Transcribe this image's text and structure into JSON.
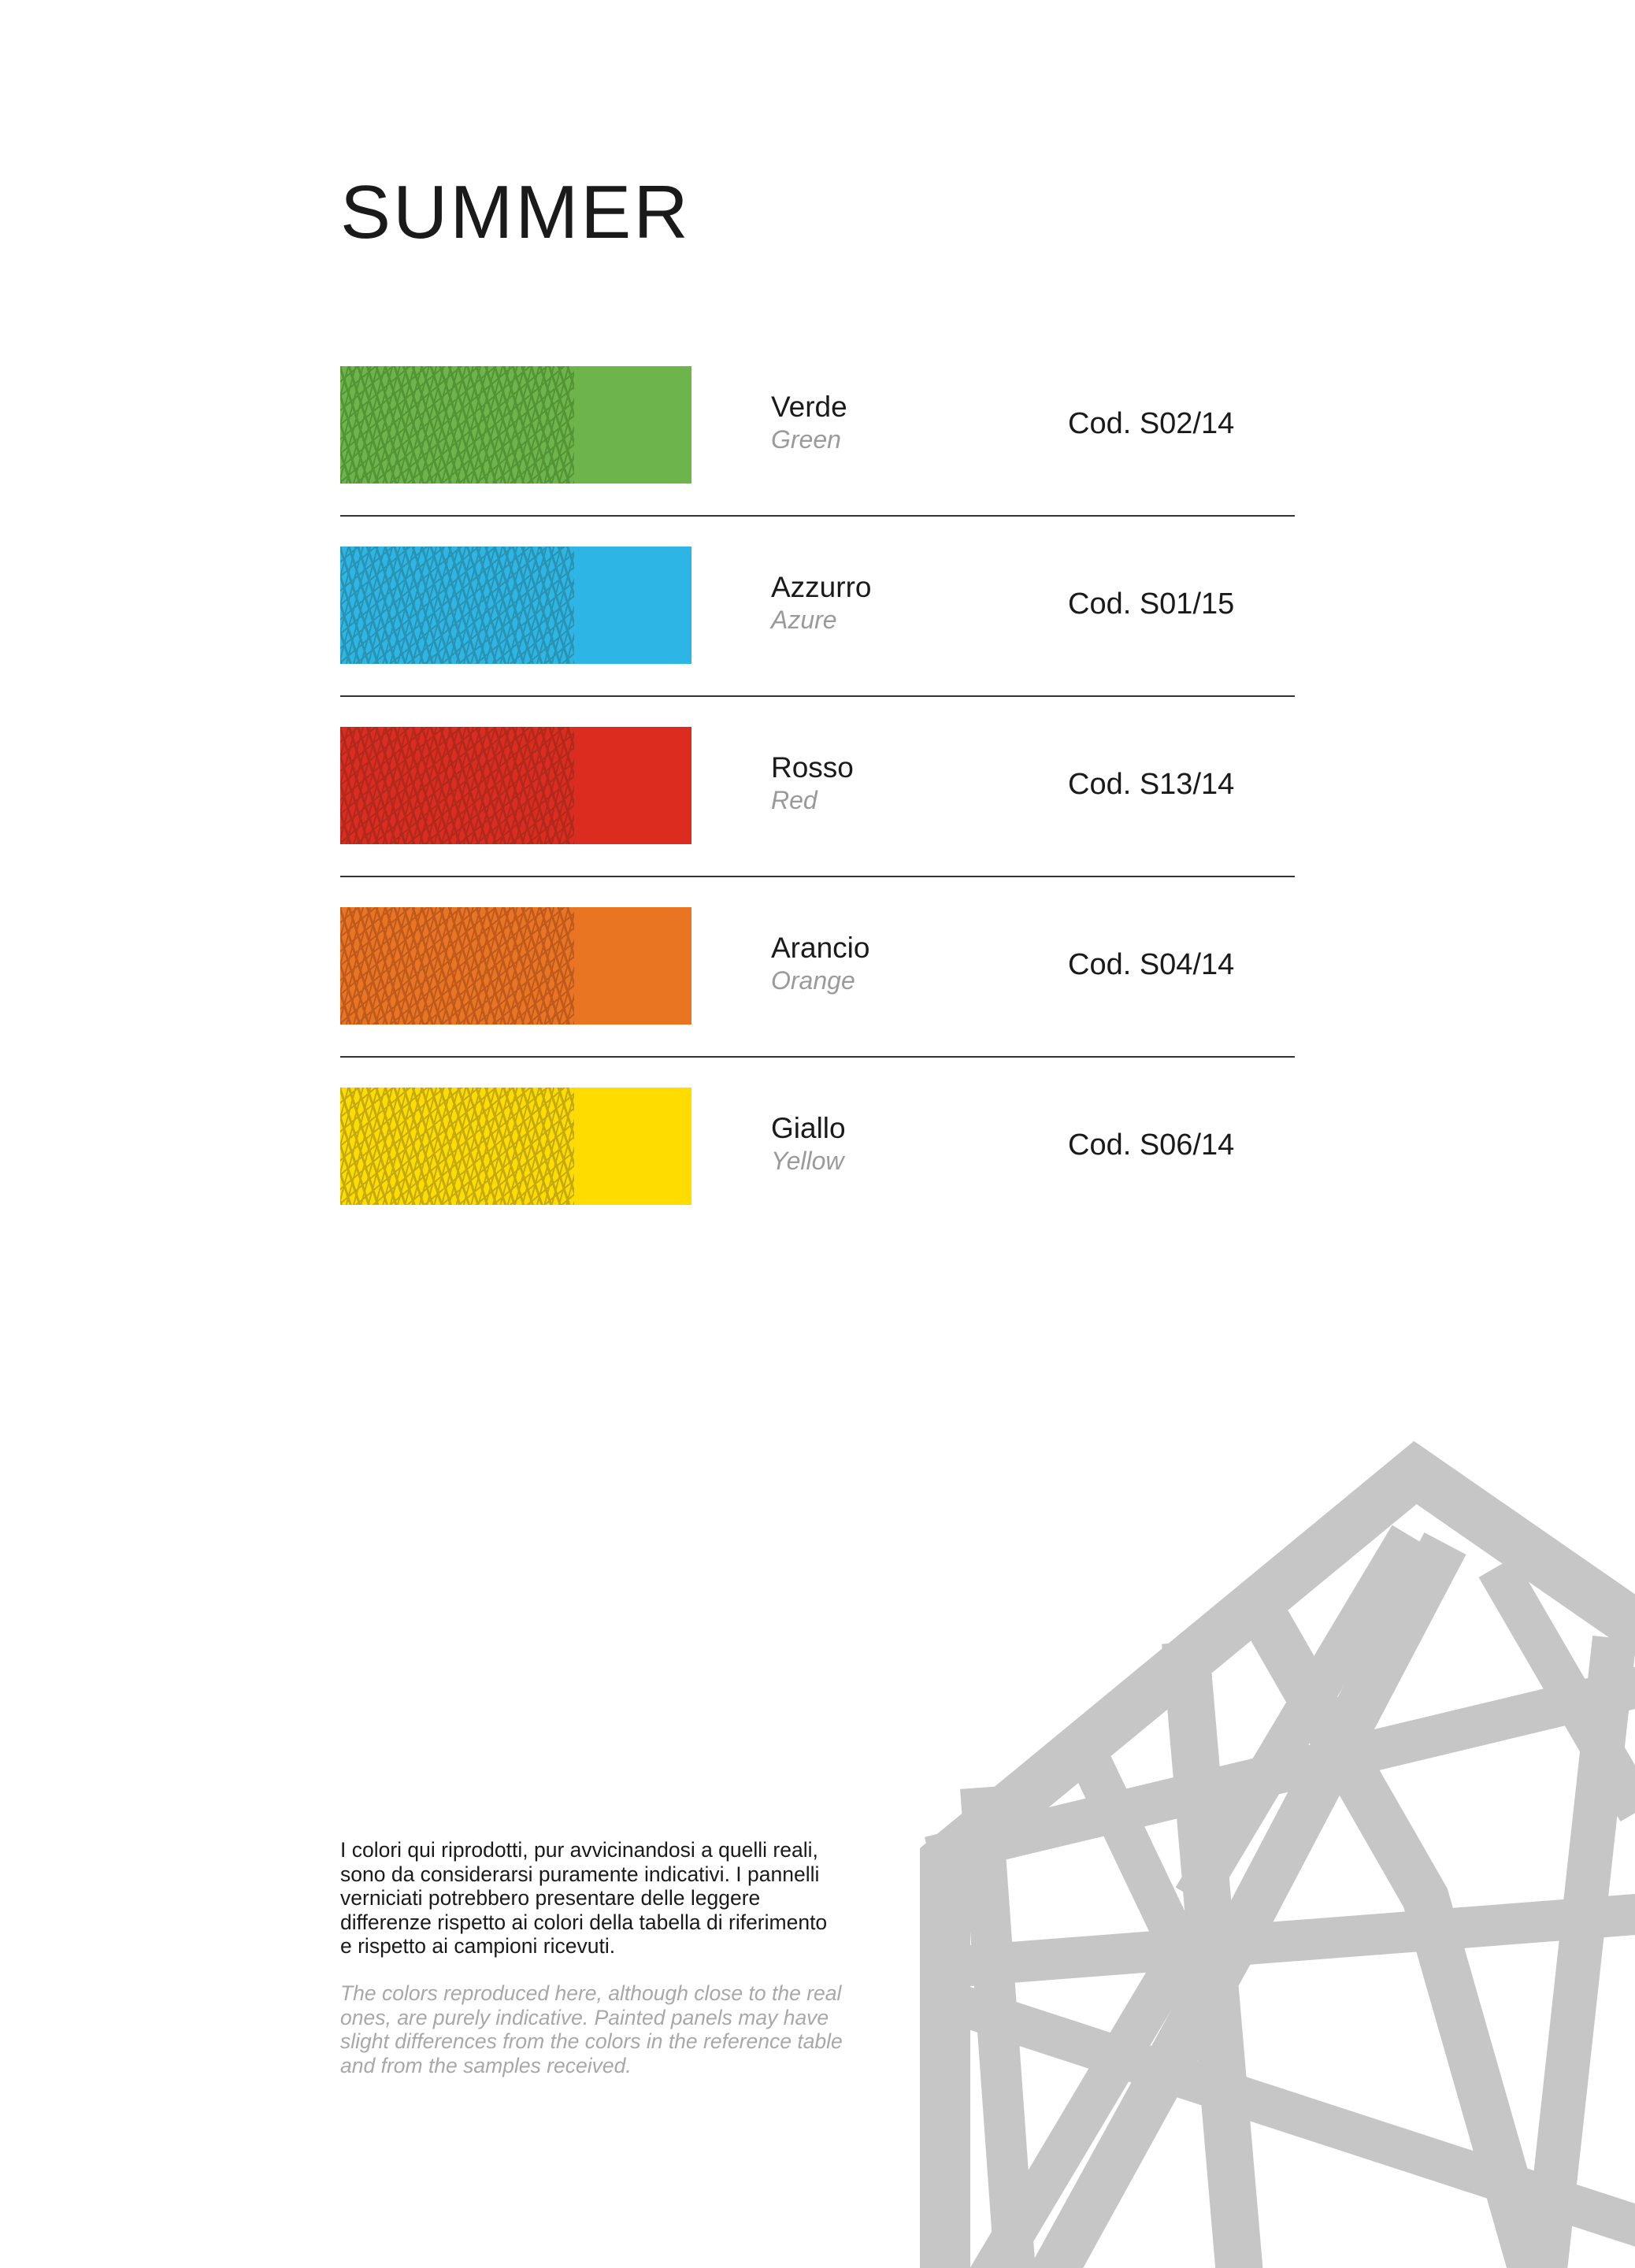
{
  "title": "SUMMER",
  "colors": [
    {
      "name": "Verde",
      "name_en": "Green",
      "code": "Cod. S02/14",
      "color": "#6db54a",
      "texture": "#4f8f34"
    },
    {
      "name": "Azzurro",
      "name_en": "Azure",
      "code": "Cod. S01/15",
      "color": "#2db6e5",
      "texture": "#2a8ea8"
    },
    {
      "name": "Rosso",
      "name_en": "Red",
      "code": "Cod. S13/14",
      "color": "#dc2b1f",
      "texture": "#a82a1c"
    },
    {
      "name": "Arancio",
      "name_en": "Orange",
      "code": "Cod. S04/14",
      "color": "#e97523",
      "texture": "#b8561e"
    },
    {
      "name": "Giallo",
      "name_en": "Yellow",
      "code": "Cod. S06/14",
      "color": "#fedc00",
      "texture": "#b9a214"
    }
  ],
  "disclaimer_it": "I colori qui riprodotti, pur avvicinandosi a quelli reali, sono da considerarsi puramente indicativi. I pannelli verniciati potrebbero presentare delle leggere differenze rispetto ai colori della tabella di riferimento e rispetto ai campioni ricevuti.",
  "disclaimer_en": "The colors reproduced here, although close to the real ones, are purely indicative. Painted panels may have slight differences from the colors in the reference table and from the samples received.",
  "logo_color": "#c6c6c6"
}
